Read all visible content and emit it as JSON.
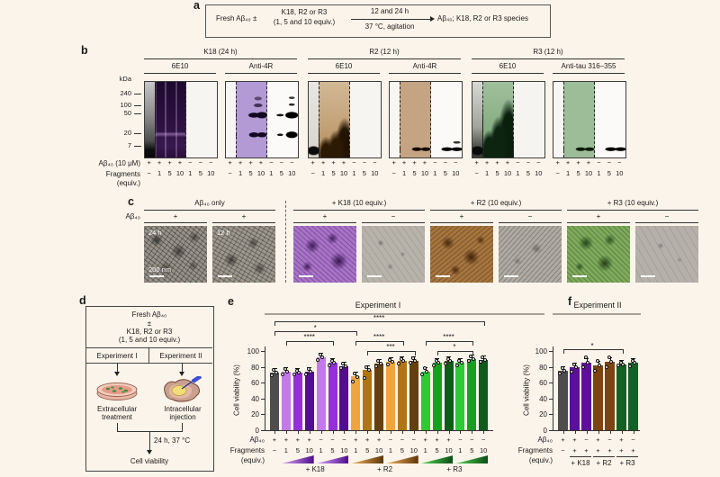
{
  "panel_a": {
    "label": "a",
    "reactant_prefix": "Fresh Aβ₄₀ ±",
    "reactant_top": "K18, R2 or R3",
    "reactant_bottom": "(1, 5 and 10 equiv.)",
    "arrow_top": "12 and 24 h",
    "arrow_bottom": "37 °C, agitation",
    "product": "Aβ₄₀; K18, R2 or R3 species"
  },
  "panel_b": {
    "label": "b",
    "kda_label": "kDa",
    "kda_ticks": [
      "240",
      "100",
      "50",
      "20",
      "7"
    ],
    "groups": [
      {
        "title": "K18 (24 h)",
        "blots": [
          {
            "antibody": "6E10",
            "art": "k18-6e10"
          },
          {
            "antibody": "Anti-4R",
            "art": "k18-4r"
          }
        ]
      },
      {
        "title": "R2 (12 h)",
        "blots": [
          {
            "antibody": "6E10",
            "art": "r2-6e10"
          },
          {
            "antibody": "Anti-4R",
            "art": "r2-4r"
          }
        ]
      },
      {
        "title": "R3 (12 h)",
        "blots": [
          {
            "antibody": "6E10",
            "art": "r3-6e10"
          },
          {
            "antibody": "Anti-tau 316–355",
            "art": "r3-tau"
          }
        ]
      }
    ],
    "abeta_label": "Aβ₄₀ (10 μM)",
    "fragments_label": "Fragments",
    "equiv_label": "(equiv.)",
    "lane_abeta": [
      "+",
      "+",
      "+",
      "+",
      "−",
      "−",
      "−"
    ],
    "lane_frag": [
      "−",
      "1",
      "5",
      "10",
      "1",
      "5",
      "10"
    ]
  },
  "panel_c": {
    "label": "c",
    "abeta_label": "Aβ₄₀",
    "groups": [
      {
        "title": "Aβ₄₀ only",
        "cells": [
          {
            "sign": "+",
            "art": "tem-fibril-a",
            "corner": "24 h",
            "scale_text": "200 nm"
          },
          {
            "sign": "+",
            "art": "tem-fibril-b",
            "corner": "12 h",
            "scale_text": ""
          }
        ]
      },
      {
        "title": "+ K18 (10 equiv.)",
        "cells": [
          {
            "sign": "+",
            "art": "tem-purple",
            "corner": "",
            "scale_text": ""
          },
          {
            "sign": "−",
            "art": "tem-sparse-a",
            "corner": "",
            "scale_text": ""
          }
        ]
      },
      {
        "title": "+ R2 (10 equiv.)",
        "cells": [
          {
            "sign": "+",
            "art": "tem-brown",
            "corner": "",
            "scale_text": ""
          },
          {
            "sign": "−",
            "art": "tem-sparse-b",
            "corner": "",
            "scale_text": ""
          }
        ]
      },
      {
        "title": "+ R3 (10 equiv.)",
        "cells": [
          {
            "sign": "+",
            "art": "tem-green",
            "corner": "",
            "scale_text": ""
          },
          {
            "sign": "−",
            "art": "tem-sparse-c",
            "corner": "",
            "scale_text": ""
          }
        ]
      }
    ]
  },
  "panel_d": {
    "label": "d",
    "box_lines": [
      "Fresh Aβ₄₀",
      "±",
      "K18, R2 or R3",
      "(1, 5 and 10 equiv.)"
    ],
    "experiment_left": "Experiment I",
    "experiment_right": "Experiment II",
    "caption_left_1": "Extracellular",
    "caption_left_2": "treatment",
    "caption_right_1": "Intracellular",
    "caption_right_2": "injection",
    "condition": "24 h, 37 °C",
    "result": "Cell viability"
  },
  "panel_e": {
    "label": "e"
  },
  "panel_f": {
    "label": "f"
  },
  "chart_data": [
    {
      "id": "experiment1",
      "type": "bar",
      "title": "Experiment I",
      "ylabel": "Cell viability (%)",
      "ylim": [
        0,
        100
      ],
      "yticks": [
        0,
        20,
        40,
        60,
        80,
        100
      ],
      "values": [
        73,
        74,
        73,
        74,
        92,
        85,
        81,
        68,
        76,
        84,
        86,
        87,
        88,
        74,
        85,
        87,
        85,
        90,
        89
      ],
      "colors": [
        "#4d4d4d",
        "#c478ef",
        "#9330d8",
        "#530e8f",
        "#c478ef",
        "#9330d8",
        "#530e8f",
        "#f0a43e",
        "#b07414",
        "#64400e",
        "#f0a43e",
        "#b07414",
        "#64400e",
        "#2dc937",
        "#17a01e",
        "#0e5c1a",
        "#2dc937",
        "#17a01e",
        "#0e5c1a"
      ],
      "points": [
        [
          69,
          73,
          76
        ],
        [
          71,
          74,
          77
        ],
        [
          70,
          73,
          75
        ],
        [
          70,
          74,
          77
        ],
        [
          89,
          92,
          95
        ],
        [
          82,
          85,
          88
        ],
        [
          78,
          81,
          84
        ],
        [
          61,
          67,
          72
        ],
        [
          66,
          76,
          80
        ],
        [
          81,
          84,
          87
        ],
        [
          83,
          86,
          89
        ],
        [
          84,
          87,
          90
        ],
        [
          85,
          88,
          91
        ],
        [
          70,
          74,
          78
        ],
        [
          82,
          85,
          88
        ],
        [
          84,
          87,
          90
        ],
        [
          82,
          85,
          88
        ],
        [
          87,
          90,
          93
        ],
        [
          86,
          89,
          92
        ]
      ],
      "abeta_row": [
        "+",
        "+",
        "+",
        "+",
        "−",
        "−",
        "−",
        "+",
        "+",
        "+",
        "−",
        "−",
        "−",
        "+",
        "+",
        "+",
        "−",
        "−",
        "−"
      ],
      "frag_row": [
        "−",
        "1",
        "5",
        "10",
        "1",
        "5",
        "10",
        "1",
        "5",
        "10",
        "1",
        "5",
        "10",
        "1",
        "5",
        "10",
        "1",
        "5",
        "10"
      ],
      "abeta_label": "Aβ₄₀",
      "fragments_label": "Fragments",
      "equiv_label": "(equiv.)",
      "group_labels": [
        "+ K18",
        "+ R2",
        "+ R3"
      ],
      "significance": [
        {
          "label": "****",
          "from": 1,
          "to": 19,
          "row": 0
        },
        {
          "label": "*",
          "from": 1,
          "to": 8,
          "row": 1
        },
        {
          "label": "****",
          "from": 2,
          "to": 6,
          "row": 2
        },
        {
          "label": "****",
          "from": 8,
          "to": 12,
          "row": 2
        },
        {
          "label": "***",
          "from": 9,
          "to": 13,
          "row": 3
        },
        {
          "label": "****",
          "from": 14,
          "to": 18,
          "row": 2
        },
        {
          "label": "*",
          "from": 15,
          "to": 18,
          "row": 3
        }
      ]
    },
    {
      "id": "experiment2",
      "type": "bar",
      "title": "Experiment II",
      "ylabel": "Cell viability (%)",
      "ylim": [
        0,
        100
      ],
      "yticks": [
        0,
        20,
        40,
        60,
        80,
        100
      ],
      "values": [
        75,
        79,
        85,
        82,
        86,
        83,
        85
      ],
      "colors": [
        "#4d4d4d",
        "#5c0f9e",
        "#5c0f9e",
        "#7b4410",
        "#7b4410",
        "#156025",
        "#156025"
      ],
      "points": [
        [
          72,
          75,
          78
        ],
        [
          74,
          79,
          83
        ],
        [
          80,
          85,
          92
        ],
        [
          75,
          82,
          87
        ],
        [
          80,
          86,
          92
        ],
        [
          82,
          83,
          85
        ],
        [
          81,
          85,
          88
        ]
      ],
      "abeta_row": [
        "+",
        "+",
        "−",
        "+",
        "−",
        "+",
        "−"
      ],
      "frag_row": [
        "−",
        "+",
        "+",
        "+",
        "+",
        "+",
        "+"
      ],
      "abeta_label": "Aβ₄₀",
      "fragments_label": "Fragments",
      "equiv_label": "(equiv.)",
      "group_labels": [
        "+ K18",
        "+ R2",
        "+ R3"
      ],
      "significance": [
        {
          "label": "*",
          "from": 1,
          "to": 6,
          "row": 0
        }
      ]
    }
  ]
}
